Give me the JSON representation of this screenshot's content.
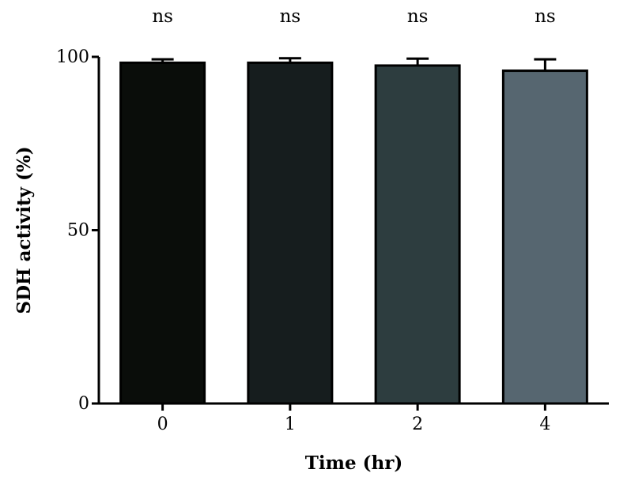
{
  "chart_data": {
    "type": "bar",
    "title": "",
    "xlabel": "Time (hr)",
    "ylabel": "SDH activity (%)",
    "categories": [
      "0",
      "1",
      "2",
      "4"
    ],
    "values": [
      98.3,
      98.3,
      97.5,
      96.0
    ],
    "error_upper": [
      1.0,
      1.3,
      2.0,
      3.3
    ],
    "significance": [
      "ns",
      "ns",
      "ns",
      "ns"
    ],
    "bar_colors": [
      "#0a0d0a",
      "#161d1e",
      "#2d3d3f",
      "#566670"
    ],
    "ylim": [
      0,
      100
    ],
    "yticks": [
      0,
      50,
      100
    ],
    "grid": false,
    "legend": "none"
  }
}
